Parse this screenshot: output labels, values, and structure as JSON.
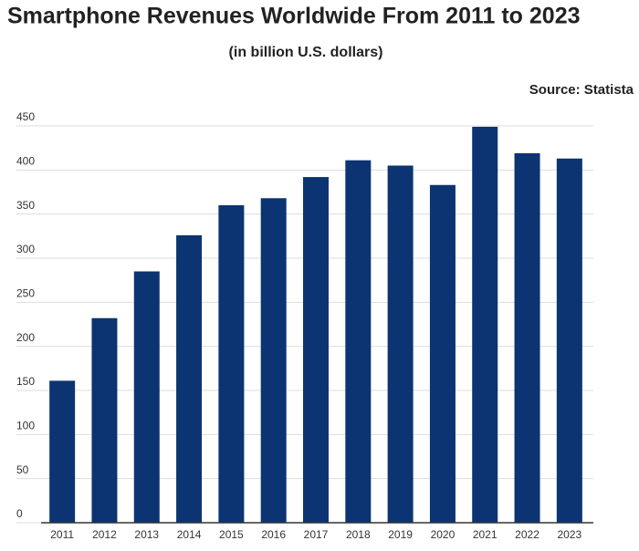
{
  "chart_data": {
    "type": "bar",
    "title": "Smartphone Revenues Worldwide From 2011 to 2023",
    "subtitle": "(in billion U.S. dollars)",
    "source": "Source: Statista",
    "categories": [
      "2011",
      "2012",
      "2013",
      "2014",
      "2015",
      "2016",
      "2017",
      "2018",
      "2019",
      "2020",
      "2021",
      "2022",
      "2023"
    ],
    "values": [
      161,
      232,
      285,
      326,
      360,
      368,
      392,
      411,
      405,
      383,
      449,
      419,
      413
    ],
    "color": "#0c3472",
    "ylim": [
      0,
      450
    ],
    "yticks": [
      0,
      50,
      100,
      150,
      200,
      250,
      300,
      350,
      400,
      450
    ],
    "grid": true
  }
}
